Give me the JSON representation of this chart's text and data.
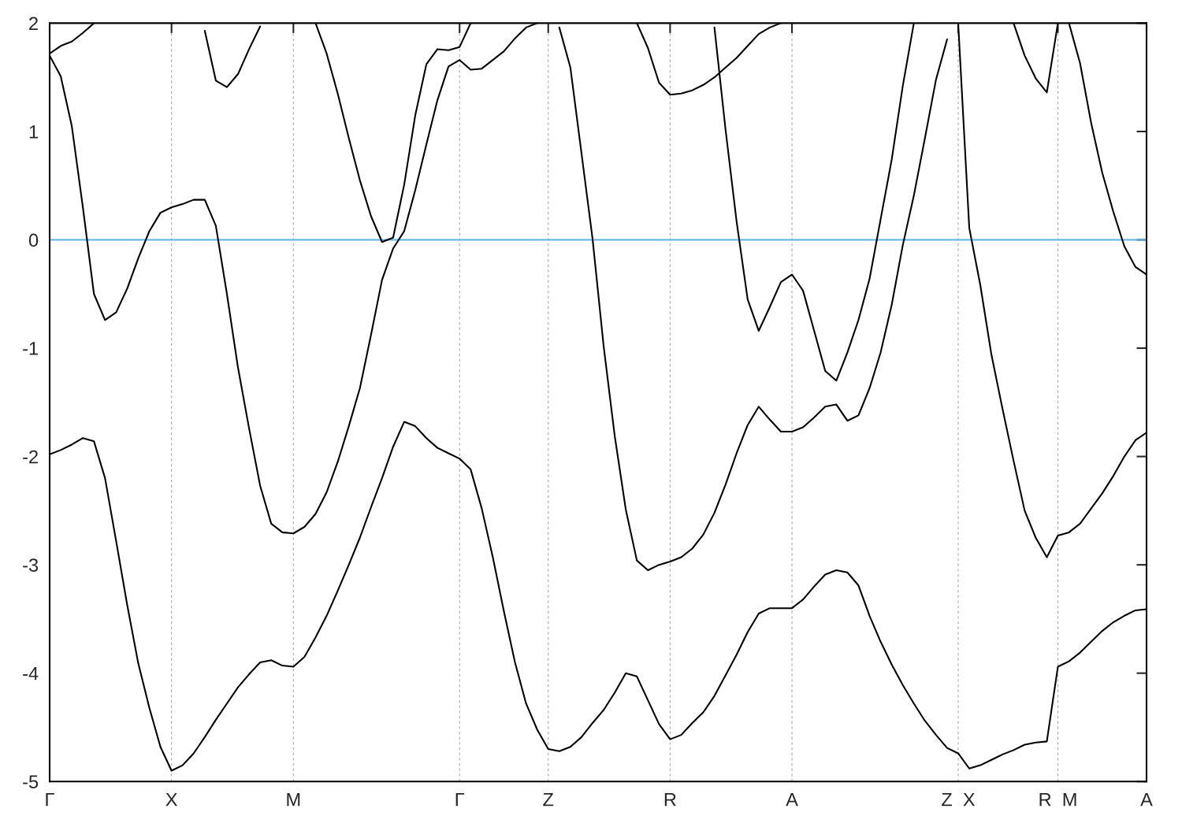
{
  "chart_data": {
    "type": "line",
    "categories": [
      "Γ",
      null,
      null,
      null,
      null,
      null,
      null,
      null,
      null,
      null,
      null,
      "X",
      null,
      null,
      null,
      null,
      null,
      null,
      null,
      null,
      null,
      null,
      "M",
      null,
      null,
      null,
      null,
      null,
      null,
      null,
      null,
      null,
      null,
      null,
      null,
      null,
      null,
      "Γ",
      null,
      null,
      null,
      null,
      null,
      null,
      null,
      "Z",
      null,
      null,
      null,
      null,
      null,
      null,
      null,
      null,
      null,
      null,
      "R",
      null,
      null,
      null,
      null,
      null,
      null,
      null,
      null,
      null,
      null,
      "A",
      null,
      null,
      null,
      null,
      null,
      null,
      null,
      null,
      null,
      null,
      null,
      null,
      null,
      null,
      "Z  X",
      null,
      null,
      null,
      null,
      null,
      null,
      null,
      null,
      "R  M",
      null,
      null,
      null,
      null,
      null,
      null,
      null,
      "A"
    ],
    "ylim": [
      -5,
      2
    ],
    "yticks": [
      -5,
      -4,
      -3,
      -2,
      -1,
      0,
      1,
      2
    ],
    "grid": "x",
    "ref_lines": [
      {
        "axis": "y",
        "value": 0,
        "color": "#56b4e9"
      }
    ],
    "series": [
      {
        "color": "#000000",
        "values": [
          -1.98,
          -1.94,
          -1.89,
          -1.83,
          -1.86,
          -2.2,
          -2.78,
          -3.37,
          -3.91,
          -4.32,
          -4.68,
          -4.9,
          -4.85,
          -4.74,
          -4.59,
          -4.43,
          -4.28,
          -4.13,
          -4.01,
          -3.9,
          -3.88,
          -3.93,
          -3.94,
          -3.85,
          -3.67,
          -3.47,
          -3.24,
          -3.0,
          -2.75,
          -2.47,
          -2.2,
          -1.91,
          -1.68,
          -1.72,
          -1.83,
          -1.92,
          -1.97,
          -2.02,
          -2.12,
          -2.48,
          -2.93,
          -3.43,
          -3.9,
          -4.28,
          -4.52,
          -4.7,
          -4.72,
          -4.68,
          -4.59,
          -4.46,
          -4.34,
          -4.18,
          -4.0,
          -4.03,
          -4.25,
          -4.47,
          -4.61,
          -4.57,
          -4.46,
          -4.36,
          -4.21,
          -4.02,
          -3.83,
          -3.62,
          -3.45,
          -3.4,
          -3.4,
          -3.4,
          -3.32,
          -3.2,
          -3.09,
          -3.05,
          -3.07,
          -3.19,
          -3.47,
          -3.71,
          -3.92,
          -4.11,
          -4.28,
          -4.44,
          -4.57,
          -4.69,
          -4.74,
          -4.88,
          -4.85,
          -4.8,
          -4.75,
          -4.71,
          -4.66,
          -4.64,
          -4.63,
          -3.94,
          -3.89,
          -3.81,
          -3.71,
          -3.61,
          -3.53,
          -3.47,
          -3.42,
          -3.41
        ]
      },
      {
        "color": "#000000",
        "values": [
          1.7,
          1.51,
          1.05,
          0.3,
          -0.5,
          -0.74,
          -0.67,
          -0.45,
          -0.17,
          0.08,
          0.25,
          0.3,
          0.33,
          0.37,
          0.37,
          0.13,
          -0.5,
          -1.18,
          -1.74,
          -2.27,
          -2.62,
          -2.7,
          -2.71,
          -2.65,
          -2.53,
          -2.33,
          -2.05,
          -1.72,
          -1.37,
          -0.88,
          -0.37,
          -0.08,
          0.08,
          0.46,
          0.88,
          1.29,
          1.6,
          1.66,
          1.57,
          1.58,
          1.66,
          1.74,
          1.86,
          1.96,
          2.0,
          null,
          null,
          null,
          null,
          null,
          null,
          null,
          null,
          null,
          null,
          null,
          null,
          null,
          null,
          null,
          null,
          null,
          null,
          null,
          null,
          null,
          null,
          null,
          null,
          null,
          null,
          null,
          null,
          null,
          null,
          null,
          null,
          null,
          null,
          null,
          null,
          null,
          null,
          null,
          null,
          null,
          null,
          null,
          null,
          null,
          null,
          null,
          null,
          null,
          null,
          null,
          null,
          null,
          null,
          null
        ]
      },
      {
        "color": "#000000",
        "values": [
          null,
          null,
          null,
          null,
          null,
          null,
          null,
          null,
          null,
          null,
          null,
          null,
          null,
          null,
          null,
          null,
          null,
          null,
          null,
          null,
          null,
          null,
          null,
          null,
          2.0,
          1.72,
          1.35,
          0.94,
          0.55,
          0.22,
          -0.02,
          0.02,
          0.51,
          1.15,
          1.62,
          1.76,
          1.75,
          1.78,
          2.0,
          null,
          null,
          null,
          null,
          null,
          null,
          null,
          null,
          null,
          null,
          null,
          null,
          null,
          null,
          null,
          null,
          null,
          null,
          null,
          null,
          null,
          null,
          null,
          null,
          null,
          null,
          null,
          null,
          null,
          null,
          null,
          null,
          null,
          null,
          null,
          null,
          null,
          null,
          null,
          null,
          null,
          null,
          null,
          null,
          null,
          null,
          null,
          null,
          null,
          null,
          null,
          null,
          null,
          null,
          null,
          null,
          null,
          null,
          null,
          null,
          null
        ]
      },
      {
        "color": "#000000",
        "values": [
          1.72,
          1.79,
          1.83,
          1.91,
          2.0,
          null,
          null,
          null,
          null,
          null,
          null,
          null,
          null,
          null,
          null,
          null,
          null,
          null,
          null,
          null,
          null,
          null,
          null,
          null,
          null,
          null,
          null,
          null,
          null,
          null,
          null,
          null,
          null,
          null,
          null,
          null,
          null,
          null,
          null,
          null,
          null,
          null,
          null,
          null,
          null,
          null,
          null,
          null,
          null,
          null,
          null,
          null,
          null,
          null,
          null,
          null,
          null,
          null,
          null,
          null,
          null,
          null,
          null,
          null,
          null,
          null,
          null,
          null,
          null,
          null,
          null,
          null,
          null,
          null,
          null,
          null,
          null,
          null,
          null,
          null,
          null,
          null,
          null,
          null,
          null,
          null,
          null,
          null,
          null,
          null,
          null,
          null,
          null,
          null,
          null,
          null,
          null,
          null,
          null,
          null
        ]
      },
      {
        "color": "#000000",
        "values": [
          null,
          null,
          null,
          null,
          null,
          null,
          null,
          null,
          null,
          null,
          null,
          null,
          null,
          null,
          1.93,
          1.47,
          1.41,
          1.53,
          1.76,
          1.97,
          null,
          null,
          null,
          null,
          null,
          null,
          null,
          null,
          null,
          null,
          null,
          null,
          null,
          null,
          null,
          null,
          null,
          null,
          null,
          null,
          null,
          null,
          null,
          null,
          null,
          null,
          null,
          null,
          null,
          null,
          null,
          null,
          null,
          null,
          null,
          null,
          null,
          null,
          null,
          null,
          null,
          null,
          null,
          null,
          null,
          null,
          null,
          null,
          null,
          null,
          null,
          null,
          null,
          null,
          null,
          null,
          null,
          null,
          null,
          null,
          null,
          null,
          null,
          null,
          null,
          null,
          null,
          null,
          null,
          null,
          null,
          null,
          null,
          null,
          null,
          null,
          null,
          null,
          null,
          null
        ]
      },
      {
        "color": "#000000",
        "values": [
          null,
          null,
          null,
          null,
          null,
          null,
          null,
          null,
          null,
          null,
          null,
          null,
          null,
          null,
          null,
          null,
          null,
          null,
          null,
          null,
          null,
          null,
          null,
          null,
          null,
          null,
          null,
          null,
          null,
          null,
          null,
          null,
          null,
          null,
          null,
          null,
          null,
          null,
          null,
          null,
          null,
          null,
          null,
          null,
          null,
          null,
          1.96,
          1.59,
          0.8,
          0.01,
          -0.98,
          -1.81,
          -2.49,
          -2.96,
          -3.05,
          -3.0,
          -2.97,
          -2.93,
          -2.85,
          -2.72,
          -2.52,
          -2.26,
          -1.97,
          -1.71,
          -1.54,
          -1.66,
          -1.77,
          -1.77,
          -1.73,
          -1.64,
          -1.54,
          -1.52,
          -1.67,
          -1.62,
          -1.37,
          -1.04,
          -0.6,
          -0.05,
          0.41,
          0.94,
          1.48,
          1.85,
          null,
          null,
          null,
          null,
          null,
          null,
          null,
          null,
          null,
          null,
          null,
          null,
          null,
          null,
          null,
          null,
          null,
          null
        ]
      },
      {
        "color": "#000000",
        "values": [
          null,
          null,
          null,
          null,
          null,
          null,
          null,
          null,
          null,
          null,
          null,
          null,
          null,
          null,
          null,
          null,
          null,
          null,
          null,
          null,
          null,
          null,
          null,
          null,
          null,
          null,
          null,
          null,
          null,
          null,
          null,
          null,
          null,
          null,
          null,
          null,
          null,
          null,
          null,
          null,
          null,
          null,
          null,
          null,
          null,
          null,
          null,
          null,
          null,
          null,
          null,
          null,
          null,
          2.0,
          1.77,
          1.45,
          1.34,
          1.35,
          1.38,
          1.43,
          1.5,
          1.59,
          1.68,
          1.79,
          1.9,
          1.96,
          2.0,
          null,
          null,
          null,
          null,
          null,
          null,
          null,
          null,
          null,
          null,
          null,
          null,
          null,
          null,
          null,
          null,
          null,
          null,
          null,
          null,
          null,
          null,
          null,
          null,
          null,
          null,
          null,
          null,
          null,
          null,
          null,
          null,
          null
        ]
      },
      {
        "color": "#000000",
        "values": [
          null,
          null,
          null,
          null,
          null,
          null,
          null,
          null,
          null,
          null,
          null,
          null,
          null,
          null,
          null,
          null,
          null,
          null,
          null,
          null,
          null,
          null,
          null,
          null,
          null,
          null,
          null,
          null,
          null,
          null,
          null,
          null,
          null,
          null,
          null,
          null,
          null,
          null,
          null,
          null,
          null,
          null,
          null,
          null,
          null,
          null,
          null,
          null,
          null,
          null,
          null,
          null,
          null,
          null,
          null,
          null,
          null,
          null,
          null,
          null,
          1.96,
          1.02,
          0.17,
          -0.55,
          -0.84,
          -0.62,
          -0.39,
          -0.32,
          -0.47,
          -0.84,
          -1.21,
          -1.3,
          -1.04,
          -0.74,
          -0.36,
          0.19,
          0.74,
          1.42,
          2.0,
          null,
          null,
          null,
          null,
          null,
          null,
          null,
          null,
          null,
          null,
          null,
          null,
          null,
          null,
          null,
          null,
          null,
          null,
          null,
          null,
          null
        ]
      },
      {
        "color": "#000000",
        "values": [
          null,
          null,
          null,
          null,
          null,
          null,
          null,
          null,
          null,
          null,
          null,
          null,
          null,
          null,
          null,
          null,
          null,
          null,
          null,
          null,
          null,
          null,
          null,
          null,
          null,
          null,
          null,
          null,
          null,
          null,
          null,
          null,
          null,
          null,
          null,
          null,
          null,
          null,
          null,
          null,
          null,
          null,
          null,
          null,
          null,
          null,
          null,
          null,
          null,
          null,
          null,
          null,
          null,
          null,
          null,
          null,
          null,
          null,
          null,
          null,
          null,
          null,
          null,
          null,
          null,
          null,
          null,
          null,
          null,
          null,
          null,
          null,
          null,
          null,
          null,
          null,
          null,
          null,
          null,
          null,
          null,
          null,
          2.0,
          0.11,
          -0.42,
          -1.06,
          -1.56,
          -2.04,
          -2.5,
          -2.75,
          -2.93,
          -2.73,
          -2.7,
          -2.62,
          -2.48,
          -2.34,
          -2.18,
          -2.0,
          -1.85,
          -1.78
        ]
      },
      {
        "color": "#000000",
        "values": [
          null,
          null,
          null,
          null,
          null,
          null,
          null,
          null,
          null,
          null,
          null,
          null,
          null,
          null,
          null,
          null,
          null,
          null,
          null,
          null,
          null,
          null,
          null,
          null,
          null,
          null,
          null,
          null,
          null,
          null,
          null,
          null,
          null,
          null,
          null,
          null,
          null,
          null,
          null,
          null,
          null,
          null,
          null,
          null,
          null,
          null,
          null,
          null,
          null,
          null,
          null,
          null,
          null,
          null,
          null,
          null,
          null,
          null,
          null,
          null,
          null,
          null,
          null,
          null,
          null,
          null,
          null,
          null,
          null,
          null,
          null,
          null,
          null,
          null,
          null,
          null,
          null,
          null,
          null,
          null,
          null,
          null,
          null,
          null,
          null,
          null,
          null,
          2.0,
          1.7,
          1.49,
          1.36,
          2.0,
          null,
          null,
          null,
          null,
          null,
          null,
          null,
          null
        ]
      },
      {
        "color": "#000000",
        "values": [
          null,
          null,
          null,
          null,
          null,
          null,
          null,
          null,
          null,
          null,
          null,
          null,
          null,
          null,
          null,
          null,
          null,
          null,
          null,
          null,
          null,
          null,
          null,
          null,
          null,
          null,
          null,
          null,
          null,
          null,
          null,
          null,
          null,
          null,
          null,
          null,
          null,
          null,
          null,
          null,
          null,
          null,
          null,
          null,
          null,
          null,
          null,
          null,
          null,
          null,
          null,
          null,
          null,
          null,
          null,
          null,
          null,
          null,
          null,
          null,
          null,
          null,
          null,
          null,
          null,
          null,
          null,
          null,
          null,
          null,
          null,
          null,
          null,
          null,
          null,
          null,
          null,
          null,
          null,
          null,
          null,
          null,
          null,
          null,
          null,
          null,
          null,
          null,
          null,
          null,
          null,
          null,
          2.0,
          1.63,
          1.08,
          0.62,
          0.26,
          -0.06,
          -0.25,
          -0.32
        ]
      }
    ]
  }
}
